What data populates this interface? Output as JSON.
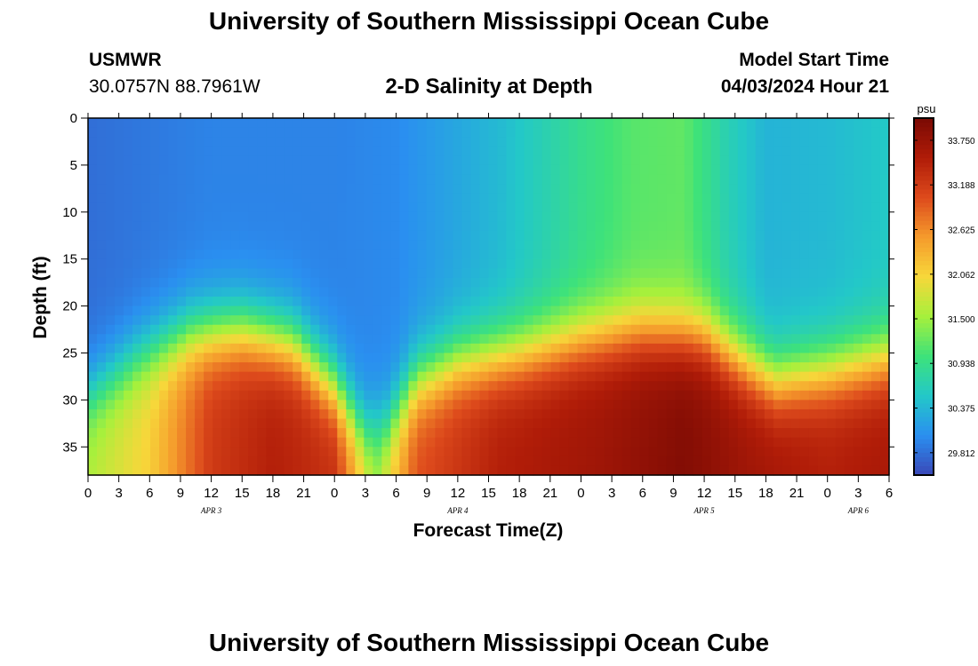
{
  "header": {
    "title": "University of Southern Mississippi Ocean Cube",
    "station_id": "USMWR",
    "coordinates": "30.0757N  88.7961W",
    "plot_title": "2-D Salinity at Depth",
    "model_start_label": "Model Start Time",
    "model_start_value": "04/03/2024 Hour 21"
  },
  "footer": {
    "title": "University of Southern Mississippi Ocean Cube"
  },
  "colors": {
    "colormap": [
      "#3a48b8",
      "#2a8ff0",
      "#23c8c8",
      "#3ee27a",
      "#a6f03c",
      "#f7d73a",
      "#f59a2c",
      "#dd4a1c",
      "#b01c08",
      "#7a0a04"
    ]
  },
  "chart_data": {
    "type": "heatmap",
    "title": "2-D Salinity at Depth",
    "xlabel": "Forecast Time(Z)",
    "ylabel": "Depth (ft)",
    "x_start_hour": 0,
    "x_end_hour": 78,
    "x_ticks": [
      "0",
      "3",
      "6",
      "9",
      "12",
      "15",
      "18",
      "21",
      "0",
      "3",
      "6",
      "9",
      "12",
      "15",
      "18",
      "21",
      "0",
      "3",
      "6",
      "9",
      "12",
      "15",
      "18",
      "21",
      "0",
      "3",
      "6"
    ],
    "date_labels": [
      {
        "label": "APR 3",
        "hour": 12
      },
      {
        "label": "APR 4",
        "hour": 36
      },
      {
        "label": "APR 5",
        "hour": 60
      },
      {
        "label": "APR 6",
        "hour": 75
      }
    ],
    "ylim": [
      0,
      38
    ],
    "y_ticks": [
      "0",
      "5",
      "10",
      "15",
      "20",
      "25",
      "30",
      "35"
    ],
    "y_tick_values": [
      0,
      5,
      10,
      15,
      20,
      25,
      30,
      35
    ],
    "colorbar": {
      "unit": "psu",
      "min": 29.53,
      "max": 34.03,
      "tick_labels": [
        "33.750",
        "33.188",
        "32.625",
        "32.062",
        "31.500",
        "30.938",
        "30.375",
        "29.812"
      ],
      "tick_values": [
        33.75,
        33.188,
        32.625,
        32.062,
        31.5,
        30.938,
        30.375,
        29.812
      ]
    },
    "surface_salinity_profile": [
      {
        "hour": 0,
        "psu": 29.8
      },
      {
        "hour": 12,
        "psu": 29.95
      },
      {
        "hour": 24,
        "psu": 29.95
      },
      {
        "hour": 30,
        "psu": 30.0
      },
      {
        "hour": 40,
        "psu": 30.4
      },
      {
        "hour": 48,
        "psu": 30.9
      },
      {
        "hour": 53,
        "psu": 31.15
      },
      {
        "hour": 58,
        "psu": 31.2
      },
      {
        "hour": 62,
        "psu": 30.7
      },
      {
        "hour": 66,
        "psu": 30.35
      },
      {
        "hour": 72,
        "psu": 30.4
      },
      {
        "hour": 78,
        "psu": 30.55
      }
    ],
    "halocline_depth_profile_ft": [
      {
        "hour": 0,
        "depth": 29.5
      },
      {
        "hour": 5,
        "depth": 25.5
      },
      {
        "hour": 10,
        "depth": 23.0
      },
      {
        "hour": 15,
        "depth": 22.5
      },
      {
        "hour": 20,
        "depth": 24.0
      },
      {
        "hour": 24,
        "depth": 28.5
      },
      {
        "hour": 27,
        "depth": 33.5
      },
      {
        "hour": 29,
        "depth": 33.0
      },
      {
        "hour": 32,
        "depth": 28.0
      },
      {
        "hour": 36,
        "depth": 26.0
      },
      {
        "hour": 42,
        "depth": 25.0
      },
      {
        "hour": 48,
        "depth": 23.5
      },
      {
        "hour": 54,
        "depth": 22.5
      },
      {
        "hour": 60,
        "depth": 23.0
      },
      {
        "hour": 64,
        "depth": 26.0
      },
      {
        "hour": 67,
        "depth": 28.0
      },
      {
        "hour": 72,
        "depth": 27.0
      },
      {
        "hour": 78,
        "depth": 25.5
      }
    ],
    "bottom_salinity_profile": [
      {
        "hour": 0,
        "psu": 31.6
      },
      {
        "hour": 6,
        "psu": 32.1
      },
      {
        "hour": 12,
        "psu": 33.2
      },
      {
        "hour": 18,
        "psu": 33.5
      },
      {
        "hour": 24,
        "psu": 33.3
      },
      {
        "hour": 28,
        "psu": 31.6
      },
      {
        "hour": 32,
        "psu": 33.0
      },
      {
        "hour": 40,
        "psu": 33.5
      },
      {
        "hour": 50,
        "psu": 33.7
      },
      {
        "hour": 58,
        "psu": 33.95
      },
      {
        "hour": 64,
        "psu": 33.7
      },
      {
        "hour": 72,
        "psu": 33.5
      },
      {
        "hour": 78,
        "psu": 33.6
      }
    ]
  }
}
